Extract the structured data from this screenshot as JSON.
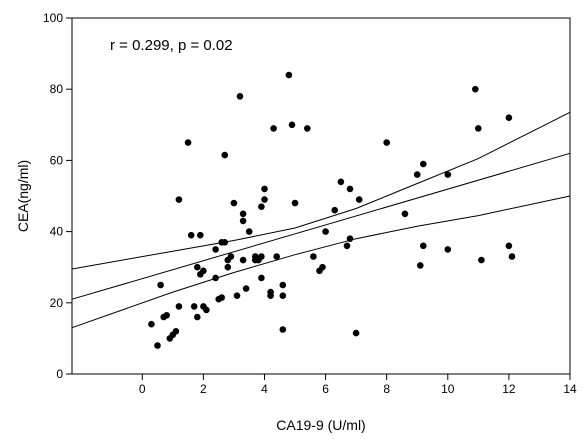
{
  "chart_data": {
    "type": "scatter",
    "xlabel": "CA19-9 (U/ml)",
    "ylabel": "CEA(ng/ml)",
    "annotation": "r = 0.299, p = 0.02",
    "xlim": [
      -2.3,
      14
    ],
    "ylim": [
      0,
      100
    ],
    "x_ticks": [
      0,
      2,
      4,
      6,
      8,
      10,
      12,
      14
    ],
    "y_ticks": [
      0,
      20,
      40,
      60,
      80,
      100
    ],
    "x_tick_labels": [
      "0",
      "2",
      "4",
      "6",
      "8",
      "10",
      "12",
      "14"
    ],
    "y_tick_labels": [
      "0",
      "20",
      "40",
      "60",
      "80",
      "100"
    ],
    "grid": false,
    "points": [
      {
        "x": 0.3,
        "y": 14
      },
      {
        "x": 0.5,
        "y": 8
      },
      {
        "x": 0.6,
        "y": 25
      },
      {
        "x": 0.7,
        "y": 16
      },
      {
        "x": 0.8,
        "y": 16.5
      },
      {
        "x": 0.9,
        "y": 10
      },
      {
        "x": 1.0,
        "y": 11
      },
      {
        "x": 1.1,
        "y": 12
      },
      {
        "x": 1.2,
        "y": 19
      },
      {
        "x": 1.2,
        "y": 49
      },
      {
        "x": 1.5,
        "y": 65
      },
      {
        "x": 1.6,
        "y": 39
      },
      {
        "x": 1.7,
        "y": 19
      },
      {
        "x": 1.8,
        "y": 16
      },
      {
        "x": 1.8,
        "y": 30
      },
      {
        "x": 1.9,
        "y": 28
      },
      {
        "x": 1.9,
        "y": 39
      },
      {
        "x": 2.0,
        "y": 19
      },
      {
        "x": 2.0,
        "y": 29
      },
      {
        "x": 2.1,
        "y": 18
      },
      {
        "x": 2.4,
        "y": 35
      },
      {
        "x": 2.4,
        "y": 27
      },
      {
        "x": 2.5,
        "y": 21
      },
      {
        "x": 2.6,
        "y": 37
      },
      {
        "x": 2.6,
        "y": 21.5
      },
      {
        "x": 2.7,
        "y": 61.5
      },
      {
        "x": 2.7,
        "y": 37
      },
      {
        "x": 2.8,
        "y": 32
      },
      {
        "x": 2.8,
        "y": 30
      },
      {
        "x": 2.9,
        "y": 33
      },
      {
        "x": 3.0,
        "y": 48
      },
      {
        "x": 3.1,
        "y": 22
      },
      {
        "x": 3.2,
        "y": 78
      },
      {
        "x": 3.3,
        "y": 45
      },
      {
        "x": 3.3,
        "y": 43
      },
      {
        "x": 3.3,
        "y": 32
      },
      {
        "x": 3.4,
        "y": 24
      },
      {
        "x": 3.5,
        "y": 40
      },
      {
        "x": 3.7,
        "y": 32
      },
      {
        "x": 3.7,
        "y": 33
      },
      {
        "x": 3.8,
        "y": 32
      },
      {
        "x": 3.9,
        "y": 33
      },
      {
        "x": 3.9,
        "y": 27
      },
      {
        "x": 3.9,
        "y": 47
      },
      {
        "x": 4.0,
        "y": 49
      },
      {
        "x": 4.0,
        "y": 52
      },
      {
        "x": 4.2,
        "y": 22
      },
      {
        "x": 4.2,
        "y": 23
      },
      {
        "x": 4.3,
        "y": 69
      },
      {
        "x": 4.4,
        "y": 33
      },
      {
        "x": 4.6,
        "y": 12.5
      },
      {
        "x": 4.6,
        "y": 22
      },
      {
        "x": 4.6,
        "y": 25
      },
      {
        "x": 4.8,
        "y": 84
      },
      {
        "x": 4.9,
        "y": 70
      },
      {
        "x": 5.0,
        "y": 48
      },
      {
        "x": 5.4,
        "y": 69
      },
      {
        "x": 5.6,
        "y": 33
      },
      {
        "x": 5.8,
        "y": 29
      },
      {
        "x": 5.9,
        "y": 30
      },
      {
        "x": 6.0,
        "y": 40
      },
      {
        "x": 6.3,
        "y": 46
      },
      {
        "x": 6.5,
        "y": 54
      },
      {
        "x": 6.7,
        "y": 36
      },
      {
        "x": 6.8,
        "y": 52
      },
      {
        "x": 6.8,
        "y": 38
      },
      {
        "x": 7.0,
        "y": 11.5
      },
      {
        "x": 7.1,
        "y": 49
      },
      {
        "x": 8.0,
        "y": 65
      },
      {
        "x": 8.6,
        "y": 45
      },
      {
        "x": 9.0,
        "y": 56
      },
      {
        "x": 9.1,
        "y": 30.5
      },
      {
        "x": 9.2,
        "y": 59
      },
      {
        "x": 9.2,
        "y": 36
      },
      {
        "x": 10.0,
        "y": 35
      },
      {
        "x": 10.0,
        "y": 56
      },
      {
        "x": 10.9,
        "y": 80
      },
      {
        "x": 11.0,
        "y": 69
      },
      {
        "x": 11.1,
        "y": 32
      },
      {
        "x": 12.0,
        "y": 72
      },
      {
        "x": 12.0,
        "y": 36
      },
      {
        "x": 12.1,
        "y": 33
      }
    ],
    "regression": {
      "x": [
        -2.3,
        14
      ],
      "y": [
        21.0,
        62.0
      ]
    },
    "ci_upper": {
      "x": [
        -2.3,
        1,
        3,
        5,
        7,
        9,
        11,
        14
      ],
      "y": [
        29.5,
        34.5,
        37.5,
        41.0,
        46.5,
        53.5,
        60.5,
        73.5
      ]
    },
    "ci_lower": {
      "x": [
        -2.3,
        1,
        3,
        5,
        7,
        9,
        11,
        14
      ],
      "y": [
        13.0,
        23.0,
        28.5,
        33.5,
        38.0,
        41.5,
        44.5,
        50.0
      ]
    },
    "colors": {
      "points": "#000000",
      "lines": "#000000",
      "axis": "#000000"
    }
  }
}
